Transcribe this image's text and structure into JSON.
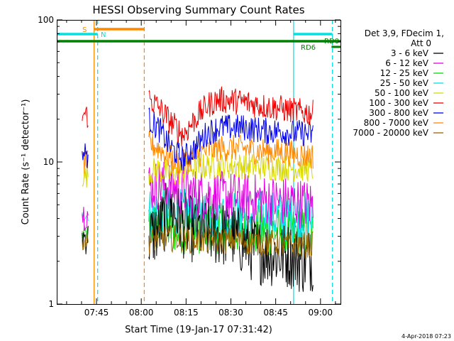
{
  "chart_data": {
    "type": "line",
    "title": "HESSI Observing Summary Count Rates",
    "xlabel": "Start Time (19-Jan-17 07:31:42)",
    "ylabel": "Count Rate (s⁻¹ detector⁻¹)",
    "yscale": "log",
    "xlim_minutes_after_0730": [
      1.7,
      96.7
    ],
    "ylim": [
      1,
      100
    ],
    "x_tick_labels": [
      "07:45",
      "08:00",
      "08:15",
      "08:30",
      "08:45",
      "09:00"
    ],
    "x_tick_minutes_after_0730": [
      15,
      30,
      45,
      60,
      75,
      90
    ],
    "y_tick_labels": [
      "1",
      "10",
      "100"
    ],
    "y_tick_values": [
      1,
      10,
      100
    ],
    "legend_title": [
      "Det 3,9, FDecim 1,",
      "Att 0"
    ],
    "legend_placement": "right, outside plot",
    "footer_date": "4-Apr-2018 07:23",
    "series": [
      {
        "name": "3 - 6 keV",
        "color": "#000000",
        "early": [
          2.2,
          3.8
        ],
        "times": [
          32.5,
          36,
          40,
          44,
          48,
          52,
          56,
          60,
          64,
          68,
          72,
          76,
          80,
          84,
          87.5
        ],
        "values": [
          2.9,
          3.4,
          4.8,
          3.6,
          3.3,
          3.3,
          3.1,
          3.1,
          2.7,
          2.4,
          2.3,
          2.2,
          2.2,
          2.0,
          2.1
        ]
      },
      {
        "name": "6 - 12 keV",
        "color": "#e000e0",
        "early": [
          3.3,
          5.4
        ],
        "times": [
          32.5,
          36,
          40,
          44,
          48,
          52,
          56,
          60,
          64,
          68,
          72,
          76,
          80,
          84,
          87.5
        ],
        "values": [
          6.8,
          6.9,
          6.8,
          6.2,
          6.0,
          5.9,
          5.8,
          5.7,
          5.6,
          5.5,
          5.4,
          5.3,
          5.2,
          5.1,
          5.0
        ]
      },
      {
        "name": "12 - 25 keV",
        "color": "#00dd00",
        "early": [
          2.6,
          3.6
        ],
        "times": [
          32.5,
          36,
          40,
          44,
          48,
          52,
          56,
          60,
          64,
          68,
          72,
          76,
          80,
          84,
          87.5
        ],
        "values": [
          3.5,
          3.5,
          3.4,
          3.4,
          3.4,
          3.4,
          3.4,
          3.4,
          3.3,
          3.3,
          3.3,
          3.2,
          3.2,
          3.2,
          3.1
        ]
      },
      {
        "name": "25 - 50 keV",
        "color": "#00e0e0",
        "early": [
          3.8,
          4.6
        ],
        "times": [
          32.5,
          36,
          40,
          44,
          48,
          52,
          56,
          60,
          64,
          68,
          72,
          76,
          80,
          84,
          87.5
        ],
        "values": [
          4.4,
          4.4,
          4.3,
          4.3,
          4.3,
          4.3,
          4.2,
          4.2,
          4.2,
          4.2,
          4.2,
          4.1,
          4.1,
          4.1,
          4.0
        ]
      },
      {
        "name": "50 - 100 keV",
        "color": "#d8d800",
        "early": [
          6.5,
          9.5
        ],
        "times": [
          32.5,
          36,
          40,
          44,
          48,
          52,
          56,
          60,
          64,
          68,
          72,
          76,
          80,
          84,
          87.5
        ],
        "values": [
          8.6,
          8.8,
          8.2,
          8.6,
          9.2,
          9.3,
          9.4,
          9.4,
          9.4,
          9.3,
          9.2,
          9.1,
          9.1,
          9.0,
          8.9
        ]
      },
      {
        "name": "100 - 300 keV",
        "color": "#ee0000",
        "early": [
          17,
          26
        ],
        "times": [
          32.5,
          36,
          40,
          44,
          48,
          52,
          56,
          60,
          64,
          68,
          72,
          76,
          80,
          84,
          87.5
        ],
        "values": [
          28,
          24,
          19,
          15.5,
          20,
          25,
          27.5,
          27,
          26.5,
          25.5,
          24.5,
          24,
          23,
          22.5,
          22
        ]
      },
      {
        "name": "300 - 800 keV",
        "color": "#0000ee",
        "early": [
          9,
          14
        ],
        "times": [
          32.5,
          36,
          40,
          44,
          48,
          52,
          56,
          60,
          64,
          68,
          72,
          76,
          80,
          84,
          87.5
        ],
        "values": [
          20,
          17,
          12.5,
          10.5,
          12.5,
          16,
          17.5,
          17.5,
          17.5,
          17,
          16.5,
          16.5,
          16,
          16,
          15.5
        ]
      },
      {
        "name": "800 - 7000 keV",
        "color": "#ff8800",
        "early": [
          8,
          12
        ],
        "times": [
          32.5,
          36,
          40,
          44,
          48,
          52,
          56,
          60,
          64,
          68,
          72,
          76,
          80,
          84,
          87.5
        ],
        "values": [
          13.5,
          12.5,
          10.5,
          9.8,
          11,
          12,
          12.5,
          12.5,
          12.5,
          12,
          12,
          11.8,
          11.5,
          11.2,
          11
        ]
      },
      {
        "name": "7000 - 20000 keV",
        "color": "#996600",
        "early": [
          2.4,
          3.2
        ],
        "times": [
          32.5,
          36,
          40,
          44,
          48,
          52,
          56,
          60,
          64,
          68,
          72,
          76,
          80,
          84,
          87.5
        ],
        "values": [
          2.8,
          2.9,
          2.9,
          2.9,
          2.8,
          2.8,
          2.8,
          2.8,
          2.8,
          2.7,
          2.7,
          2.7,
          2.6,
          2.6,
          2.6
        ]
      }
    ],
    "bars": [
      {
        "label": "S",
        "color": "#ff8800",
        "start": 14.2,
        "end": 31.0,
        "ytop": 6
      },
      {
        "label": "N",
        "color": "#00e0e0",
        "start": 1.7,
        "end": 15.4,
        "ytop": 4
      },
      {
        "label": "",
        "color": "#00e0e0",
        "start": 81.0,
        "end": 94.0,
        "ytop": 4
      },
      {
        "label": "RD0",
        "color": "#008000",
        "start": 1.7,
        "end": 96.7,
        "ytop": 0
      },
      {
        "label": "RD6",
        "color": "#008000",
        "start": 93.7,
        "end": 96.7,
        "ytop": 1
      }
    ],
    "vertical_lines": [
      {
        "color": "#ff8800",
        "minutes": 14.2,
        "dashed": false
      },
      {
        "color": "#00e0e0",
        "minutes": 15.4,
        "dashed": true
      },
      {
        "color": "#ff8800",
        "minutes": 31.0,
        "dashed": true
      },
      {
        "color": "#00e0e0",
        "minutes": 81.0,
        "dashed": false
      },
      {
        "color": "#00e0e0",
        "minutes": 94.0,
        "dashed": true
      }
    ]
  }
}
